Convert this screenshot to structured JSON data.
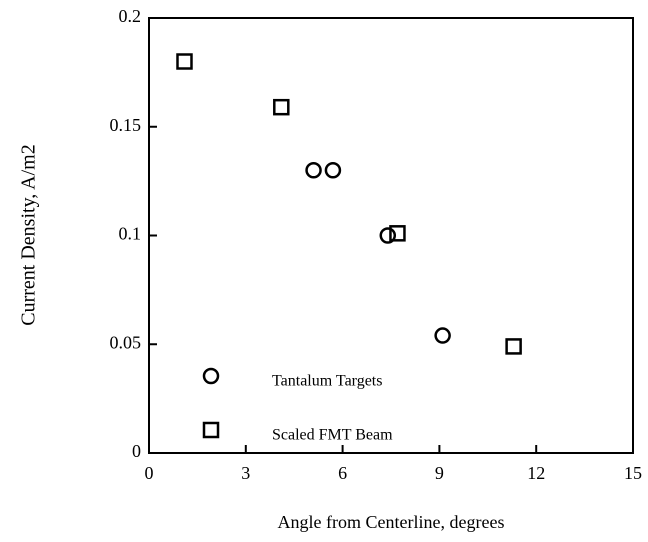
{
  "chart_data": {
    "type": "scatter",
    "xlabel": "Angle from Centerline, degrees",
    "ylabel": "Current Density, A/m2",
    "xlim": [
      0,
      15
    ],
    "xticks": [
      0,
      3,
      6,
      9,
      12,
      15
    ],
    "ylim": [
      0,
      0.2
    ],
    "yticks": [
      0,
      0.05,
      0.1,
      0.15,
      0.2
    ],
    "legend": "lower left",
    "series": [
      {
        "name": "Tantalum Targets",
        "marker": "circle",
        "color": "#000000",
        "x": [
          5.1,
          5.7,
          7.4,
          9.1
        ],
        "values": [
          0.13,
          0.13,
          0.1,
          0.054
        ]
      },
      {
        "name": "Scaled FMT Beam",
        "marker": "square",
        "color": "#000000",
        "x": [
          1.1,
          4.1,
          7.7,
          11.3
        ],
        "values": [
          0.18,
          0.159,
          0.101,
          0.049
        ]
      }
    ]
  }
}
